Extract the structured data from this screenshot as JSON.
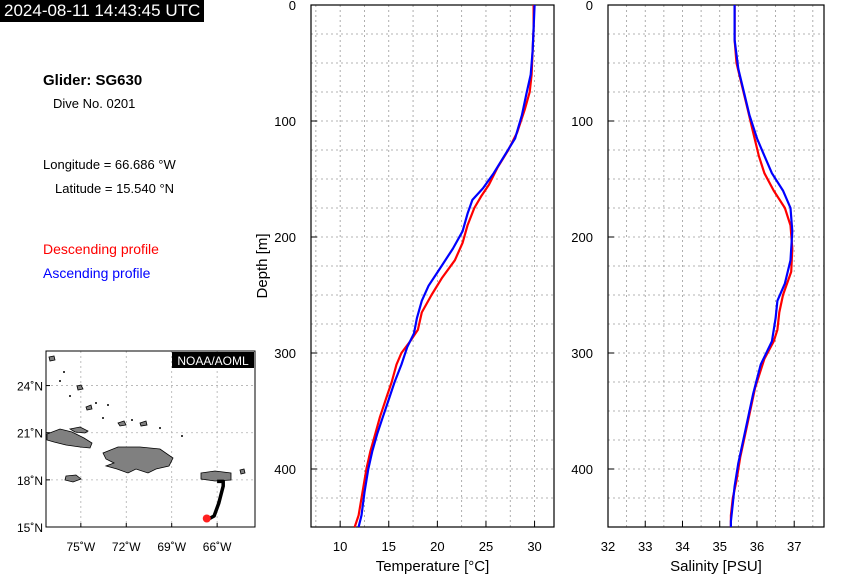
{
  "header": {
    "timestamp": "2024-08-11 14:43:45 UTC",
    "glider": "Glider: SG630",
    "dive": "Dive No. 0201",
    "longitude": "Longitude = 66.686 °W",
    "latitude": "Latitude = 15.540 °N",
    "legend_desc": "Descending profile",
    "legend_asc": "Ascending profile"
  },
  "colors": {
    "descending": "#ff0000",
    "ascending": "#0000ff",
    "land": "#808080",
    "track": "#000000"
  },
  "chart_data": [
    {
      "type": "line",
      "xlabel": "Temperature [°C]",
      "ylabel": "Depth [m]",
      "xlim": [
        7,
        32
      ],
      "ylim": [
        450,
        0
      ],
      "xticks": [
        10,
        15,
        20,
        25,
        30
      ],
      "yticks": [
        0,
        100,
        200,
        300,
        400
      ],
      "grid": true,
      "series": [
        {
          "name": "Descending profile",
          "color": "#ff0000",
          "x": [
            29.9,
            29.9,
            29.8,
            29.7,
            29.5,
            29.0,
            28.2,
            27.3,
            26.2,
            25.3,
            24.5,
            23.8,
            23.1,
            22.6,
            21.8,
            20.5,
            19.4,
            18.4,
            18.0,
            17.2,
            16.3,
            15.8,
            15.3,
            14.7,
            14.1,
            13.6,
            13.1,
            12.7,
            12.3,
            11.9,
            11.5
          ],
          "y": [
            0,
            20,
            40,
            60,
            75,
            90,
            110,
            125,
            140,
            155,
            165,
            175,
            190,
            205,
            220,
            235,
            250,
            265,
            280,
            290,
            300,
            310,
            325,
            340,
            355,
            370,
            385,
            400,
            420,
            440,
            450
          ]
        },
        {
          "name": "Ascending profile",
          "color": "#0000ff",
          "x": [
            30.0,
            29.9,
            29.8,
            29.6,
            29.2,
            28.7,
            28.0,
            26.9,
            25.8,
            24.7,
            23.6,
            23.1,
            22.6,
            21.6,
            20.2,
            19.1,
            18.4,
            17.9,
            17.6,
            16.9,
            16.3,
            15.6,
            15.0,
            14.4,
            13.8,
            13.3,
            12.9,
            12.5,
            12.2,
            11.9
          ],
          "y": [
            0,
            20,
            40,
            60,
            75,
            95,
            115,
            130,
            145,
            158,
            168,
            180,
            195,
            210,
            228,
            242,
            255,
            270,
            283,
            295,
            310,
            325,
            340,
            355,
            370,
            385,
            400,
            420,
            440,
            450
          ]
        }
      ]
    },
    {
      "type": "line",
      "xlabel": "Salinity [PSU]",
      "ylabel": "",
      "xlim": [
        32,
        37.8
      ],
      "ylim": [
        450,
        0
      ],
      "xticks": [
        32,
        33,
        34,
        35,
        36,
        37
      ],
      "yticks": [
        0,
        100,
        200,
        300,
        400
      ],
      "grid": true,
      "series": [
        {
          "name": "Descending profile",
          "color": "#ff0000",
          "x": [
            35.4,
            35.4,
            35.45,
            35.6,
            35.75,
            35.9,
            36.05,
            36.2,
            36.45,
            36.75,
            36.9,
            36.95,
            36.92,
            36.7,
            36.6,
            36.55,
            36.45,
            36.2,
            35.95,
            35.75,
            35.55,
            35.45,
            35.35,
            35.3,
            35.3
          ],
          "y": [
            0,
            30,
            50,
            70,
            90,
            110,
            130,
            145,
            160,
            175,
            190,
            210,
            230,
            250,
            265,
            280,
            290,
            305,
            330,
            360,
            390,
            410,
            425,
            440,
            450
          ]
        },
        {
          "name": "Ascending profile",
          "color": "#0000ff",
          "x": [
            35.4,
            35.4,
            35.5,
            35.65,
            35.8,
            36.0,
            36.2,
            36.4,
            36.7,
            36.9,
            36.95,
            36.9,
            36.75,
            36.55,
            36.5,
            36.4,
            36.1,
            35.9,
            35.7,
            35.5,
            35.4,
            35.35,
            35.3,
            35.3
          ],
          "y": [
            0,
            30,
            55,
            75,
            95,
            115,
            130,
            145,
            160,
            175,
            195,
            220,
            240,
            255,
            270,
            290,
            310,
            335,
            365,
            395,
            415,
            430,
            445,
            450
          ]
        }
      ]
    }
  ],
  "map": {
    "title": "NOAA/AOML",
    "lat_labels": [
      "24˚N",
      "21˚N",
      "18˚N",
      "15˚N"
    ],
    "lon_labels": [
      "75˚W",
      "72˚W",
      "69˚W",
      "66˚W"
    ],
    "lat_ticks": [
      24,
      21,
      18,
      15
    ],
    "lon_ticks": [
      -75,
      -72,
      -69,
      -66
    ],
    "lat_range": [
      15,
      26.2
    ],
    "lon_range": [
      -77.3,
      -63.5
    ],
    "track": [
      [
        -66.0,
        17.9
      ],
      [
        -65.6,
        17.9
      ],
      [
        -65.6,
        17.6
      ],
      [
        -65.9,
        16.5
      ],
      [
        -66.2,
        15.7
      ],
      [
        -66.5,
        15.55
      ]
    ],
    "position": [
      -66.686,
      15.54
    ]
  }
}
